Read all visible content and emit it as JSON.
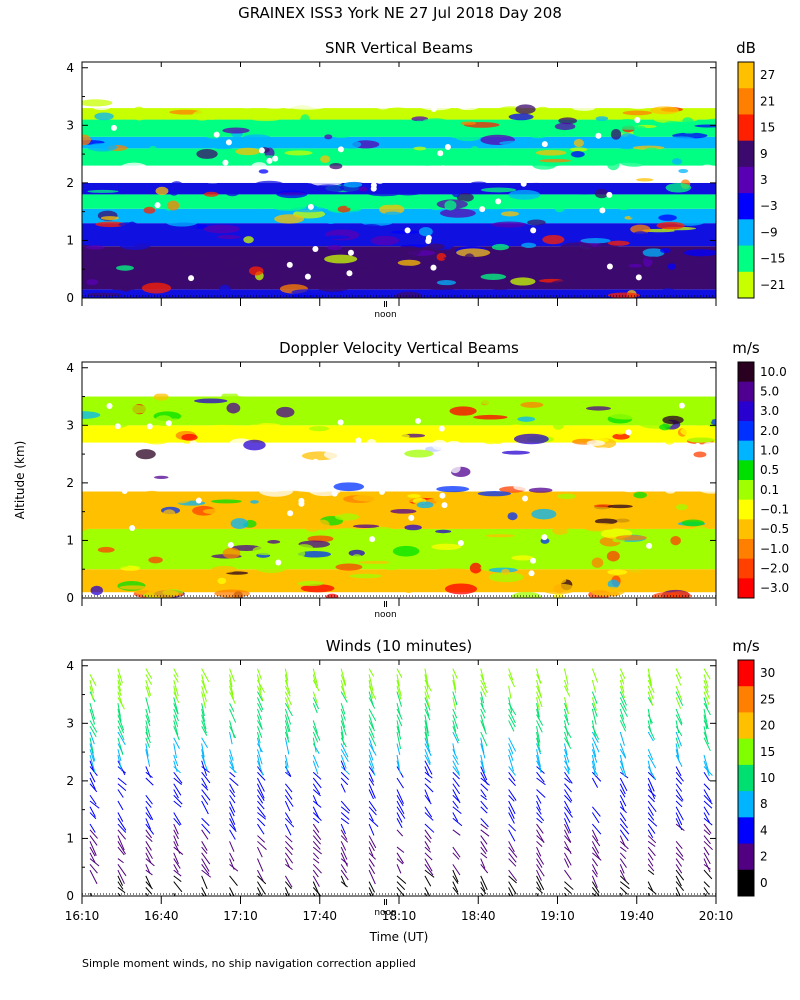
{
  "figure": {
    "title": "GRAINEX ISS3 York NE  27 Jul 2018 Day 208",
    "ylabel": "Altitude (km)",
    "xlabel": "Time (UT)",
    "noon_label": "noon",
    "footnote": "Simple moment winds, no ship navigation correction applied"
  },
  "chart_data": [
    {
      "type": "heatmap",
      "title": "SNR Vertical Beams",
      "unit": "dB",
      "ylim": [
        0,
        4.1
      ],
      "yticks": [
        0,
        1,
        2,
        3,
        4
      ],
      "colorbar": {
        "labels": [
          "27",
          "21",
          "15",
          "9",
          "3",
          "−3",
          "−9",
          "−15",
          "−21"
        ],
        "colors": [
          "#ffc000",
          "#ff8000",
          "#ff2000",
          "#3c0a6e",
          "#5a00b4",
          "#0000ff",
          "#00b4ff",
          "#00ff82",
          "#c8ff00"
        ]
      },
      "layers": [
        {
          "from": 0.0,
          "to": 0.15,
          "color": "#1010e0"
        },
        {
          "from": 0.15,
          "to": 0.9,
          "color": "#3c0a6e"
        },
        {
          "from": 0.9,
          "to": 1.3,
          "color": "#1010e0"
        },
        {
          "from": 1.3,
          "to": 1.55,
          "color": "#00b4ff"
        },
        {
          "from": 1.55,
          "to": 1.8,
          "color": "#00ff82"
        },
        {
          "from": 1.8,
          "to": 2.0,
          "color": "#1010e0"
        },
        {
          "from": 2.0,
          "to": 2.3,
          "color": "#ffffff"
        },
        {
          "from": 2.3,
          "to": 2.6,
          "color": "#00ff82"
        },
        {
          "from": 2.6,
          "to": 2.8,
          "color": "#00b4ff"
        },
        {
          "from": 2.8,
          "to": 3.1,
          "color": "#00ff82"
        },
        {
          "from": 3.1,
          "to": 3.3,
          "color": "#c8ff00"
        },
        {
          "from": 3.3,
          "to": 3.5,
          "color": "#ffffff"
        }
      ]
    },
    {
      "type": "heatmap",
      "title": "Doppler Velocity Vertical Beams",
      "unit": "m/s",
      "ylim": [
        0,
        4.1
      ],
      "yticks": [
        0,
        1,
        2,
        3,
        4
      ],
      "colorbar": {
        "labels": [
          "10.0",
          "5.0",
          "3.0",
          "2.0",
          "1.0",
          "0.5",
          "0.1",
          "−0.1",
          "−0.5",
          "−1.0",
          "−2.0",
          "−3.0"
        ],
        "colors": [
          "#2a0020",
          "#500090",
          "#2800d0",
          "#0030ff",
          "#00b4ff",
          "#00e000",
          "#a0ff00",
          "#ffff00",
          "#ffc000",
          "#ff8000",
          "#ff4000",
          "#ff0000"
        ]
      },
      "layers": [
        {
          "from": 0.1,
          "to": 0.5,
          "color": "#ffc000"
        },
        {
          "from": 0.5,
          "to": 1.2,
          "color": "#a0ff00"
        },
        {
          "from": 1.2,
          "to": 1.85,
          "color": "#ffc000"
        },
        {
          "from": 1.85,
          "to": 2.7,
          "color": "#ffffff"
        },
        {
          "from": 2.7,
          "to": 3.0,
          "color": "#ffff00"
        },
        {
          "from": 3.0,
          "to": 3.5,
          "color": "#a0ff00"
        }
      ]
    },
    {
      "type": "wind-barbs",
      "title": "Winds (10 minutes)",
      "unit": "m/s",
      "ylim": [
        0,
        4.1
      ],
      "yticks": [
        0,
        1,
        2,
        3,
        4
      ],
      "x": [
        "16:10",
        "16:40",
        "17:10",
        "17:40",
        "18:10",
        "18:40",
        "19:10",
        "19:40",
        "20:10"
      ],
      "colorbar": {
        "labels": [
          "30",
          "25",
          "20",
          "15",
          "10",
          "8",
          "4",
          "2",
          "0"
        ],
        "colors": [
          "#ff0000",
          "#ff8000",
          "#ffc000",
          "#80ff00",
          "#00e070",
          "#00b4ff",
          "#0000ff",
          "#500080",
          "#000000"
        ]
      }
    }
  ]
}
